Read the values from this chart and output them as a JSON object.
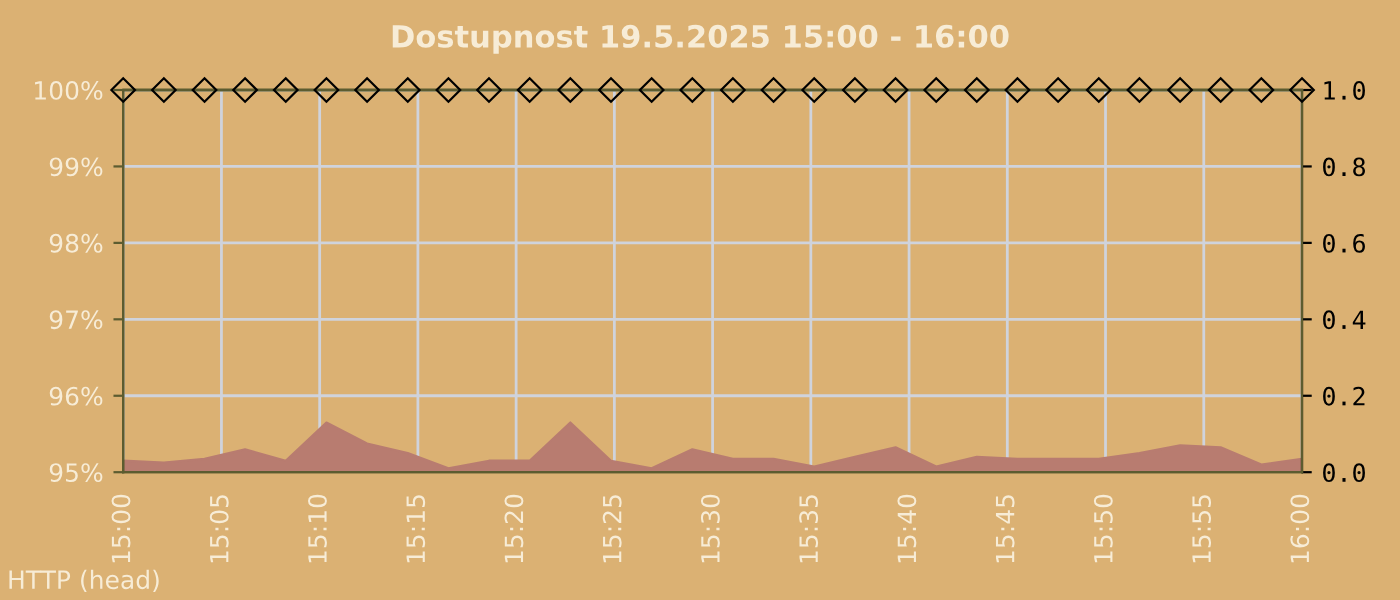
{
  "chart_data": {
    "type": "line",
    "title": "Dostupnost 19.5.2025 15:00 - 16:00",
    "x": [
      15,
      15.0345,
      15.069,
      15.1034,
      15.1379,
      15.1724,
      15.2069,
      15.2414,
      15.2759,
      15.3103,
      15.3448,
      15.3793,
      15.4138,
      15.4483,
      15.4828,
      15.5172,
      15.5517,
      15.5862,
      15.6207,
      15.6552,
      15.6897,
      15.7241,
      15.7586,
      15.7931,
      15.8276,
      15.8621,
      15.8966,
      15.931,
      15.9655,
      16
    ],
    "series": [
      {
        "type": "area",
        "axis": "y2",
        "color": "#b87c70",
        "values": [
          0.03,
          0.025,
          0.035,
          0.06,
          0.03,
          0.13,
          0.075,
          0.05,
          0.01,
          0.03,
          0.03,
          0.13,
          0.03,
          0.01,
          0.06,
          0.035,
          0.035,
          0.015,
          0.04,
          0.065,
          0.015,
          0.04,
          0.035,
          0.035,
          0.035,
          0.05,
          0.07,
          0.065,
          0.02,
          0.035
        ]
      },
      {
        "color": "#5c5c30",
        "marker": "diamond",
        "values": [
          100,
          100,
          100,
          100,
          100,
          100,
          100,
          100,
          100,
          100,
          100,
          100,
          100,
          100,
          100,
          100,
          100,
          100,
          100,
          100,
          100,
          100,
          100,
          100,
          100,
          100,
          100,
          100,
          100,
          100
        ]
      }
    ],
    "xlim": [
      15,
      16
    ],
    "xticks": [
      {
        "value": 15,
        "label": "15:00"
      },
      {
        "value": 15.083333,
        "label": "15:05"
      },
      {
        "value": 15.166667,
        "label": "15:10"
      },
      {
        "value": 15.25,
        "label": "15:15"
      },
      {
        "value": 15.333333,
        "label": "15:20"
      },
      {
        "value": 15.416667,
        "label": "15:25"
      },
      {
        "value": 15.5,
        "label": "15:30"
      },
      {
        "value": 15.583333,
        "label": "15:35"
      },
      {
        "value": 15.666667,
        "label": "15:40"
      },
      {
        "value": 15.75,
        "label": "15:45"
      },
      {
        "value": 15.833333,
        "label": "15:50"
      },
      {
        "value": 15.916667,
        "label": "15:55"
      },
      {
        "value": 16,
        "label": "16:00"
      }
    ],
    "ylim": [
      95,
      100
    ],
    "yticks": [
      {
        "value": 95,
        "label": "95%"
      },
      {
        "value": 96,
        "label": "96%"
      },
      {
        "value": 97,
        "label": "97%"
      },
      {
        "value": 98,
        "label": "98%"
      },
      {
        "value": 99,
        "label": "99%"
      },
      {
        "value": 100,
        "label": "100%"
      }
    ],
    "y2lim": [
      0,
      1
    ],
    "y2ticks": [
      {
        "value": 0,
        "label": "0.0"
      },
      {
        "value": 0.2,
        "label": "0.2"
      },
      {
        "value": 0.4,
        "label": "0.4"
      },
      {
        "value": 0.6,
        "label": "0.6"
      },
      {
        "value": 0.8,
        "label": "0.8"
      },
      {
        "value": 1,
        "label": "1.0"
      }
    ],
    "grid": true,
    "annotations": [
      "HTTP (head)"
    ]
  }
}
